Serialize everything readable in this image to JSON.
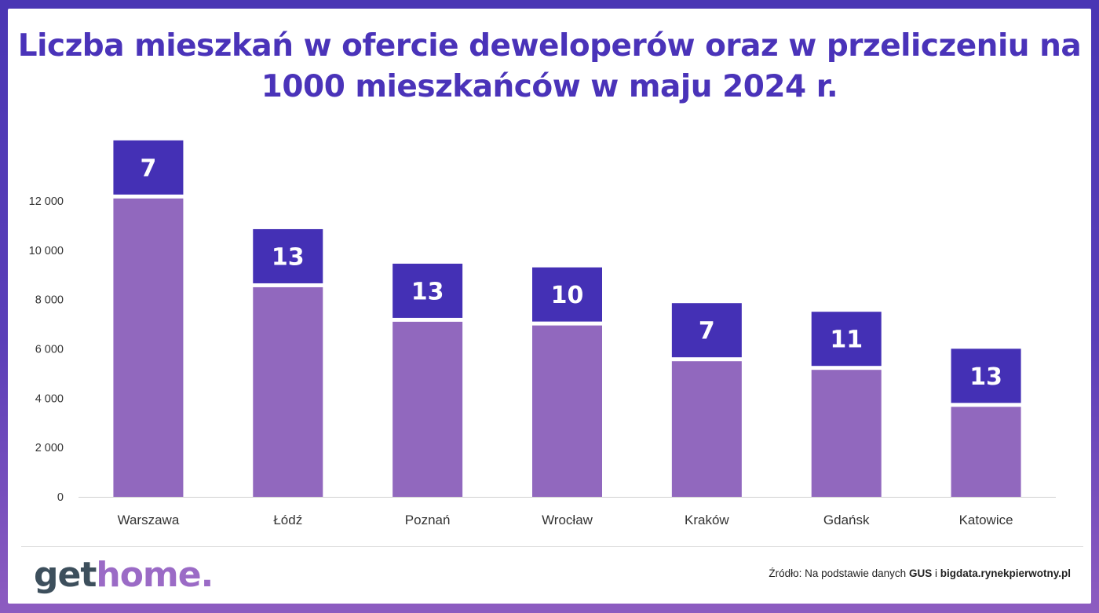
{
  "title": "Liczba mieszkań w ofercie deweloperów oraz w przeliczeniu na 1000 mieszkańców w maju 2024  r.",
  "chart_data": {
    "type": "bar",
    "categories": [
      "Warszawa",
      "Łódź",
      "Poznań",
      "Wrocław",
      "Kraków",
      "Gdańsk",
      "Katowice"
    ],
    "series": [
      {
        "values": [
          12100,
          8500,
          7100,
          6950,
          5500,
          5150,
          3650
        ]
      }
    ],
    "data_labels": [
      "7",
      "13",
      "13",
      "10",
      "7",
      "11",
      "13"
    ],
    "per_1000_residents": [
      7,
      13,
      13,
      10,
      7,
      11,
      13
    ],
    "ylim": [
      0,
      12000
    ],
    "yticks": [
      0,
      2000,
      4000,
      6000,
      8000,
      10000,
      12000
    ],
    "ytick_labels": [
      "0",
      "2 000",
      "4 000",
      "6 000",
      "8 000",
      "10 000",
      "12 000"
    ],
    "xlabel": "",
    "ylabel": "",
    "grid": false,
    "colors": {
      "bar": "#9168be",
      "label_box": "#4430b5",
      "label_text": "#ffffff"
    }
  },
  "footer": {
    "logo_part1": "get",
    "logo_part2": "home.",
    "source_prefix": "Źródło: Na podstawie danych ",
    "source_gus": "GUS",
    "source_and": " i ",
    "source_site": "bigdata.rynekpierwotny.pl"
  }
}
